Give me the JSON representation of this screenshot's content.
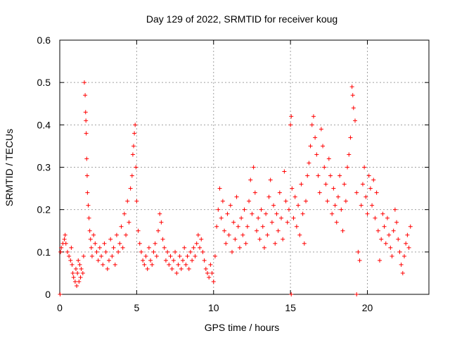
{
  "chart_data": {
    "type": "scatter",
    "title": "Day 129 of 2022, SRMTID for receiver koug",
    "xlabel": "GPS time / hours",
    "ylabel": "SRMTID / TECUs",
    "xlim": [
      0,
      24
    ],
    "ylim": [
      0,
      0.6
    ],
    "grid": true,
    "marker": "plus",
    "color": "#ff0000",
    "xticks": [
      {
        "value": 0,
        "label": "0"
      },
      {
        "value": 5,
        "label": "5"
      },
      {
        "value": 10,
        "label": "10"
      },
      {
        "value": 15,
        "label": "15"
      },
      {
        "value": 20,
        "label": "20"
      }
    ],
    "yticks": [
      {
        "value": 0,
        "label": "0"
      },
      {
        "value": 0.1,
        "label": "0.1"
      },
      {
        "value": 0.2,
        "label": "0.2"
      },
      {
        "value": 0.3,
        "label": "0.3"
      },
      {
        "value": 0.4,
        "label": "0.4"
      },
      {
        "value": 0.5,
        "label": "0.5"
      },
      {
        "value": 0.6,
        "label": "0.6"
      }
    ],
    "series": [
      {
        "name": "SRMTID",
        "points": [
          [
            0.02,
            0.0
          ],
          [
            0.05,
            0.1
          ],
          [
            0.1,
            0.11
          ],
          [
            0.2,
            0.12
          ],
          [
            0.3,
            0.13
          ],
          [
            0.35,
            0.14
          ],
          [
            0.4,
            0.12
          ],
          [
            0.5,
            0.1
          ],
          [
            0.6,
            0.09
          ],
          [
            0.7,
            0.08
          ],
          [
            0.75,
            0.11
          ],
          [
            0.8,
            0.07
          ],
          [
            0.85,
            0.05
          ],
          [
            0.9,
            0.04
          ],
          [
            1.0,
            0.03
          ],
          [
            1.05,
            0.06
          ],
          [
            1.1,
            0.02
          ],
          [
            1.15,
            0.05
          ],
          [
            1.2,
            0.08
          ],
          [
            1.25,
            0.03
          ],
          [
            1.3,
            0.07
          ],
          [
            1.35,
            0.04
          ],
          [
            1.4,
            0.06
          ],
          [
            1.5,
            0.05
          ],
          [
            1.55,
            0.09
          ],
          [
            1.6,
            0.5
          ],
          [
            1.65,
            0.47
          ],
          [
            1.68,
            0.43
          ],
          [
            1.7,
            0.41
          ],
          [
            1.72,
            0.38
          ],
          [
            1.75,
            0.32
          ],
          [
            1.78,
            0.28
          ],
          [
            1.8,
            0.24
          ],
          [
            1.85,
            0.21
          ],
          [
            1.9,
            0.18
          ],
          [
            1.95,
            0.15
          ],
          [
            2.0,
            0.13
          ],
          [
            2.05,
            0.11
          ],
          [
            2.1,
            0.09
          ],
          [
            2.2,
            0.14
          ],
          [
            2.3,
            0.12
          ],
          [
            2.4,
            0.1
          ],
          [
            2.5,
            0.08
          ],
          [
            2.6,
            0.11
          ],
          [
            2.7,
            0.09
          ],
          [
            2.8,
            0.07
          ],
          [
            2.9,
            0.12
          ],
          [
            3.0,
            0.1
          ],
          [
            3.1,
            0.06
          ],
          [
            3.2,
            0.08
          ],
          [
            3.3,
            0.13
          ],
          [
            3.4,
            0.09
          ],
          [
            3.5,
            0.11
          ],
          [
            3.6,
            0.07
          ],
          [
            3.7,
            0.14
          ],
          [
            3.8,
            0.1
          ],
          [
            3.9,
            0.12
          ],
          [
            4.0,
            0.16
          ],
          [
            4.1,
            0.11
          ],
          [
            4.2,
            0.19
          ],
          [
            4.3,
            0.14
          ],
          [
            4.4,
            0.22
          ],
          [
            4.5,
            0.17
          ],
          [
            4.6,
            0.25
          ],
          [
            4.7,
            0.28
          ],
          [
            4.75,
            0.33
          ],
          [
            4.8,
            0.35
          ],
          [
            4.85,
            0.38
          ],
          [
            4.9,
            0.4
          ],
          [
            4.95,
            0.3
          ],
          [
            5.0,
            0.22
          ],
          [
            5.1,
            0.15
          ],
          [
            5.2,
            0.12
          ],
          [
            5.3,
            0.1
          ],
          [
            5.4,
            0.08
          ],
          [
            5.5,
            0.07
          ],
          [
            5.6,
            0.09
          ],
          [
            5.7,
            0.06
          ],
          [
            5.8,
            0.11
          ],
          [
            5.9,
            0.08
          ],
          [
            6.0,
            0.07
          ],
          [
            6.1,
            0.1
          ],
          [
            6.2,
            0.12
          ],
          [
            6.3,
            0.09
          ],
          [
            6.4,
            0.15
          ],
          [
            6.5,
            0.19
          ],
          [
            6.6,
            0.17
          ],
          [
            6.7,
            0.13
          ],
          [
            6.8,
            0.11
          ],
          [
            6.9,
            0.08
          ],
          [
            7.0,
            0.1
          ],
          [
            7.1,
            0.07
          ],
          [
            7.2,
            0.09
          ],
          [
            7.3,
            0.06
          ],
          [
            7.4,
            0.08
          ],
          [
            7.5,
            0.1
          ],
          [
            7.6,
            0.05
          ],
          [
            7.7,
            0.07
          ],
          [
            7.8,
            0.09
          ],
          [
            7.9,
            0.06
          ],
          [
            8.0,
            0.08
          ],
          [
            8.1,
            0.11
          ],
          [
            8.2,
            0.07
          ],
          [
            8.3,
            0.09
          ],
          [
            8.4,
            0.06
          ],
          [
            8.5,
            0.1
          ],
          [
            8.6,
            0.08
          ],
          [
            8.7,
            0.11
          ],
          [
            8.8,
            0.09
          ],
          [
            8.9,
            0.12
          ],
          [
            9.0,
            0.14
          ],
          [
            9.1,
            0.11
          ],
          [
            9.2,
            0.13
          ],
          [
            9.3,
            0.1
          ],
          [
            9.4,
            0.08
          ],
          [
            9.5,
            0.06
          ],
          [
            9.6,
            0.05
          ],
          [
            9.7,
            0.04
          ],
          [
            9.8,
            0.07
          ],
          [
            9.9,
            0.05
          ],
          [
            10.0,
            0.03
          ],
          [
            10.1,
            0.09
          ],
          [
            10.2,
            0.16
          ],
          [
            10.3,
            0.2
          ],
          [
            10.4,
            0.25
          ],
          [
            10.5,
            0.18
          ],
          [
            10.6,
            0.22
          ],
          [
            10.7,
            0.15
          ],
          [
            10.8,
            0.12
          ],
          [
            10.9,
            0.19
          ],
          [
            11.0,
            0.14
          ],
          [
            11.1,
            0.21
          ],
          [
            11.2,
            0.1
          ],
          [
            11.3,
            0.17
          ],
          [
            11.4,
            0.13
          ],
          [
            11.5,
            0.23
          ],
          [
            11.6,
            0.16
          ],
          [
            11.7,
            0.11
          ],
          [
            11.8,
            0.18
          ],
          [
            11.9,
            0.14
          ],
          [
            12.0,
            0.2
          ],
          [
            12.1,
            0.12
          ],
          [
            12.2,
            0.16
          ],
          [
            12.3,
            0.22
          ],
          [
            12.4,
            0.27
          ],
          [
            12.5,
            0.19
          ],
          [
            12.6,
            0.3
          ],
          [
            12.7,
            0.24
          ],
          [
            12.8,
            0.15
          ],
          [
            12.9,
            0.18
          ],
          [
            13.0,
            0.13
          ],
          [
            13.1,
            0.2
          ],
          [
            13.2,
            0.16
          ],
          [
            13.3,
            0.11
          ],
          [
            13.4,
            0.19
          ],
          [
            13.5,
            0.14
          ],
          [
            13.6,
            0.23
          ],
          [
            13.7,
            0.27
          ],
          [
            13.8,
            0.17
          ],
          [
            13.9,
            0.21
          ],
          [
            14.0,
            0.12
          ],
          [
            14.1,
            0.19
          ],
          [
            14.2,
            0.15
          ],
          [
            14.3,
            0.24
          ],
          [
            14.4,
            0.18
          ],
          [
            14.5,
            0.13
          ],
          [
            14.6,
            0.29
          ],
          [
            14.7,
            0.22
          ],
          [
            14.8,
            0.17
          ],
          [
            14.9,
            0.2
          ],
          [
            15.0,
            0.4
          ],
          [
            15.05,
            0.42
          ],
          [
            15.1,
            0.25
          ],
          [
            15.2,
            0.18
          ],
          [
            15.3,
            0.23
          ],
          [
            15.4,
            0.16
          ],
          [
            15.5,
            0.21
          ],
          [
            15.6,
            0.14
          ],
          [
            15.7,
            0.26
          ],
          [
            15.8,
            0.19
          ],
          [
            15.9,
            0.12
          ],
          [
            16.0,
            0.22
          ],
          [
            16.1,
            0.28
          ],
          [
            16.2,
            0.31
          ],
          [
            16.3,
            0.35
          ],
          [
            16.4,
            0.4
          ],
          [
            16.5,
            0.42
          ],
          [
            16.6,
            0.37
          ],
          [
            16.7,
            0.33
          ],
          [
            16.8,
            0.28
          ],
          [
            16.9,
            0.24
          ],
          [
            17.0,
            0.39
          ],
          [
            17.1,
            0.35
          ],
          [
            17.2,
            0.3
          ],
          [
            17.3,
            0.26
          ],
          [
            17.4,
            0.22
          ],
          [
            17.5,
            0.32
          ],
          [
            17.6,
            0.28
          ],
          [
            17.7,
            0.19
          ],
          [
            17.8,
            0.25
          ],
          [
            17.9,
            0.21
          ],
          [
            18.0,
            0.17
          ],
          [
            18.1,
            0.23
          ],
          [
            18.2,
            0.28
          ],
          [
            18.3,
            0.2
          ],
          [
            18.4,
            0.15
          ],
          [
            18.5,
            0.26
          ],
          [
            18.6,
            0.22
          ],
          [
            18.7,
            0.3
          ],
          [
            18.8,
            0.33
          ],
          [
            18.9,
            0.37
          ],
          [
            19.0,
            0.49
          ],
          [
            19.05,
            0.47
          ],
          [
            19.1,
            0.44
          ],
          [
            19.2,
            0.41
          ],
          [
            19.3,
            0.24
          ],
          [
            19.4,
            0.1
          ],
          [
            19.5,
            0.08
          ],
          [
            19.6,
            0.21
          ],
          [
            19.7,
            0.26
          ],
          [
            19.8,
            0.3
          ],
          [
            19.9,
            0.23
          ],
          [
            20.0,
            0.19
          ],
          [
            20.1,
            0.28
          ],
          [
            20.2,
            0.25
          ],
          [
            20.3,
            0.21
          ],
          [
            20.4,
            0.27
          ],
          [
            20.5,
            0.18
          ],
          [
            20.6,
            0.24
          ],
          [
            20.7,
            0.15
          ],
          [
            20.8,
            0.08
          ],
          [
            20.9,
            0.13
          ],
          [
            21.0,
            0.19
          ],
          [
            21.1,
            0.16
          ],
          [
            21.2,
            0.12
          ],
          [
            21.3,
            0.18
          ],
          [
            21.4,
            0.14
          ],
          [
            21.5,
            0.11
          ],
          [
            21.6,
            0.09
          ],
          [
            21.7,
            0.15
          ],
          [
            21.8,
            0.2
          ],
          [
            21.9,
            0.17
          ],
          [
            22.0,
            0.13
          ],
          [
            22.1,
            0.1
          ],
          [
            22.2,
            0.07
          ],
          [
            22.3,
            0.05
          ],
          [
            22.4,
            0.09
          ],
          [
            22.5,
            0.12
          ],
          [
            22.6,
            0.14
          ],
          [
            22.7,
            0.11
          ],
          [
            22.8,
            0.16
          ],
          [
            15.05,
            0.0
          ],
          [
            19.3,
            0.0
          ]
        ]
      }
    ]
  }
}
